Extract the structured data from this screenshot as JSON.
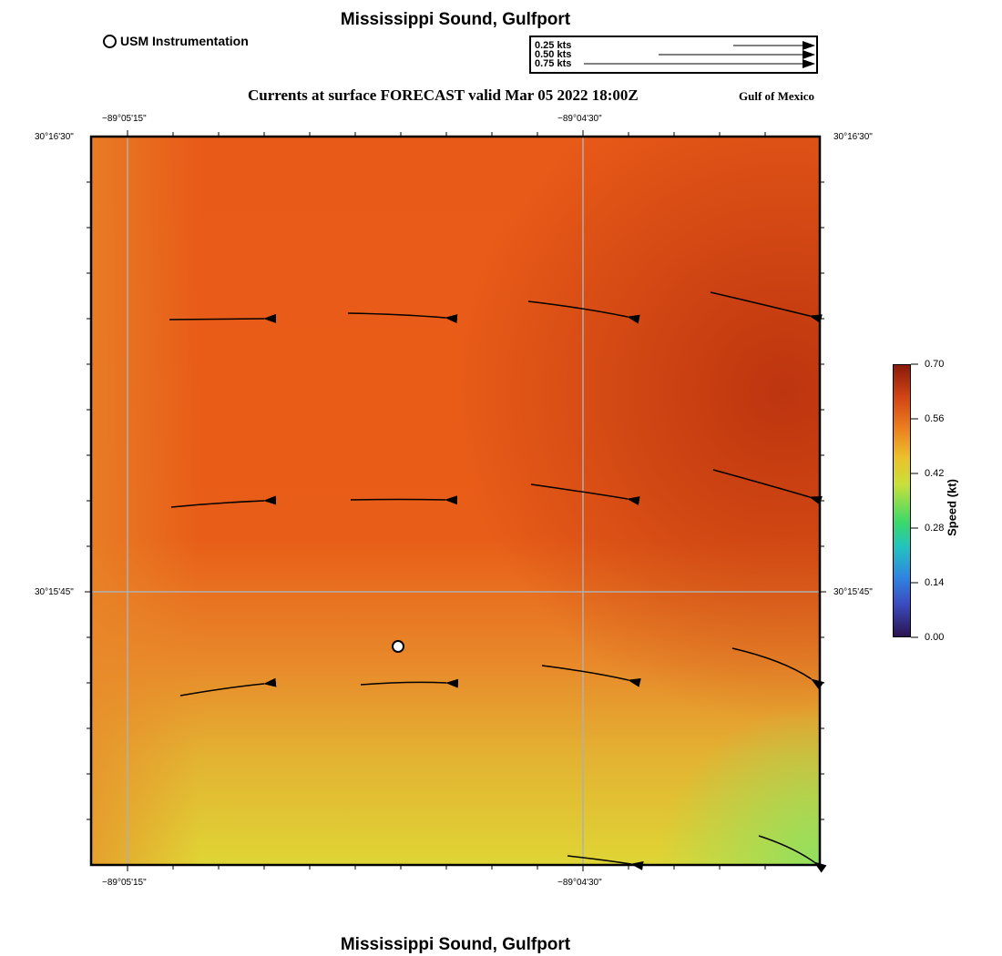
{
  "title": "Mississippi Sound, Gulfport",
  "footer_title": "Mississippi Sound, Gulfport",
  "legend": {
    "station_label": "USM Instrumentation"
  },
  "reference_vectors": [
    "0.25 kts",
    "0.50 kts",
    "0.75 kts"
  ],
  "subtitle": "Currents at surface FORECAST valid Mar 05 2022 18:00Z",
  "region": "Gulf of Mexico",
  "axes": {
    "x_ticks": [
      "−89°05'15\"",
      "−89°04'30\""
    ],
    "y_ticks": [
      "30°16'30\"",
      "30°15'45\""
    ]
  },
  "colorbar": {
    "title": "Speed (kt)",
    "ticks": [
      "0.70",
      "0.56",
      "0.42",
      "0.28",
      "0.14",
      "0.00"
    ],
    "min": 0.0,
    "max": 0.7
  },
  "colors": {
    "high_speed": "#c0390f",
    "mid_speed": "#e8581a",
    "low_speed": "#e0d332",
    "lowest_speed": "#a8e05a",
    "grid": "#b0b0b0"
  }
}
